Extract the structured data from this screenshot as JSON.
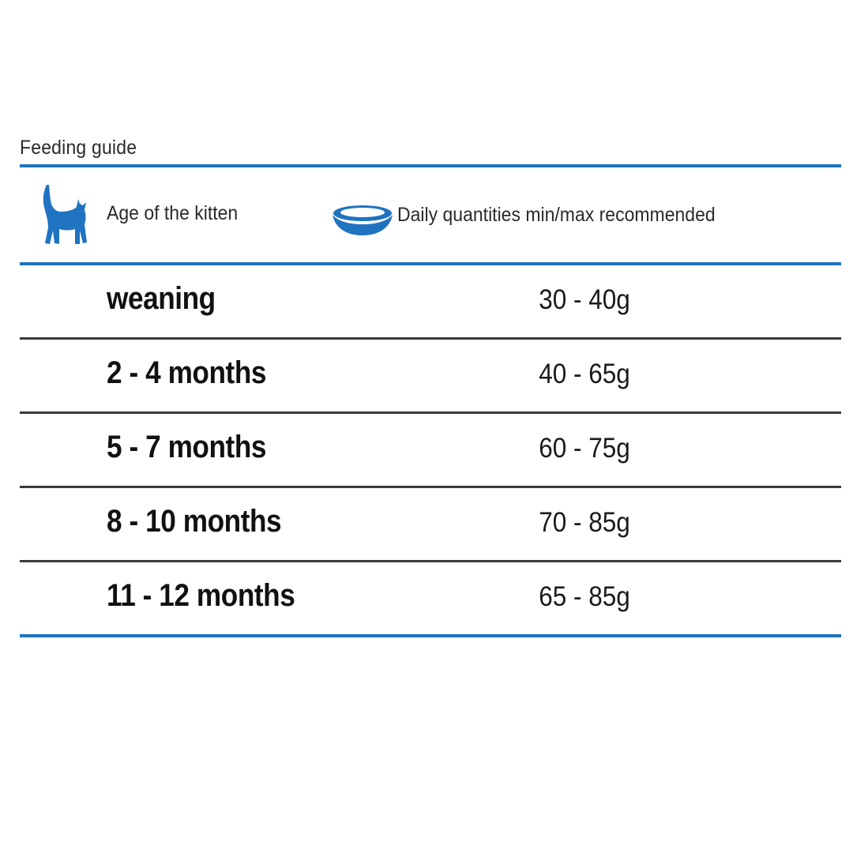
{
  "title": "Feeding guide",
  "header": {
    "age_label": "Age of the kitten",
    "quantity_label": "Daily quantities min/max recommended",
    "age_icon": "cat-icon",
    "quantity_icon": "food-bowl-icon"
  },
  "rows": [
    {
      "age": "weaning",
      "quantity": "30 - 40g"
    },
    {
      "age": "2 - 4 months",
      "quantity": "40 - 65g"
    },
    {
      "age": "5 - 7 months",
      "quantity": "60 - 75g"
    },
    {
      "age": "8 - 10 months",
      "quantity": "70 - 85g"
    },
    {
      "age": "11 - 12 months",
      "quantity": "65 - 85g"
    }
  ],
  "colors": {
    "accent": "#1f73c0",
    "divider": "#3a3a3a"
  }
}
